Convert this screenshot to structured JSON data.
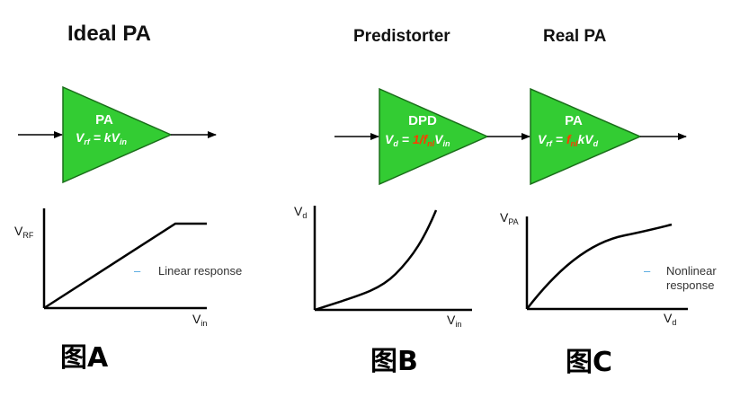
{
  "titles": {
    "ideal": "Ideal PA",
    "predistorter": "Predistorter",
    "real": "Real PA"
  },
  "blocks": {
    "ideal_pa": {
      "label": "PA",
      "eq_v": "V",
      "eq_sub": "rf",
      "eq_rest": " = kV",
      "eq_sub2": "in"
    },
    "dpd": {
      "label": "DPD",
      "eq_v": "V",
      "eq_sub": "d",
      "eq_eq": " = ",
      "eq_red": "1/f",
      "eq_red_sub": "nl",
      "eq_rest": "V",
      "eq_sub2": "in"
    },
    "real_pa": {
      "label": "PA",
      "eq_v": "V",
      "eq_sub": "rf",
      "eq_eq": " = ",
      "eq_red": "f",
      "eq_red_sub": "nl",
      "eq_rest": "kV",
      "eq_sub2": "d"
    }
  },
  "graphs": {
    "a": {
      "y_label": "V",
      "y_sub": "RF",
      "x_label": "V",
      "x_sub": "in",
      "legend_dash": "–",
      "legend": "Linear response"
    },
    "b": {
      "y_label": "V",
      "y_sub": "d",
      "x_label": "V",
      "x_sub": "in"
    },
    "c": {
      "y_label": "V",
      "y_sub": "PA",
      "x_label": "V",
      "x_sub": "d",
      "legend_dash": "–",
      "legend_line1": "Nonlinear",
      "legend_line2": "response"
    }
  },
  "captions": {
    "a": "图A",
    "b": "图B",
    "c": "图C"
  },
  "colors": {
    "block_fill": "#33cc33",
    "block_stroke": "#1a6e1a",
    "red_text": "#ff3b00",
    "legend_dash": "#4aa3df"
  }
}
